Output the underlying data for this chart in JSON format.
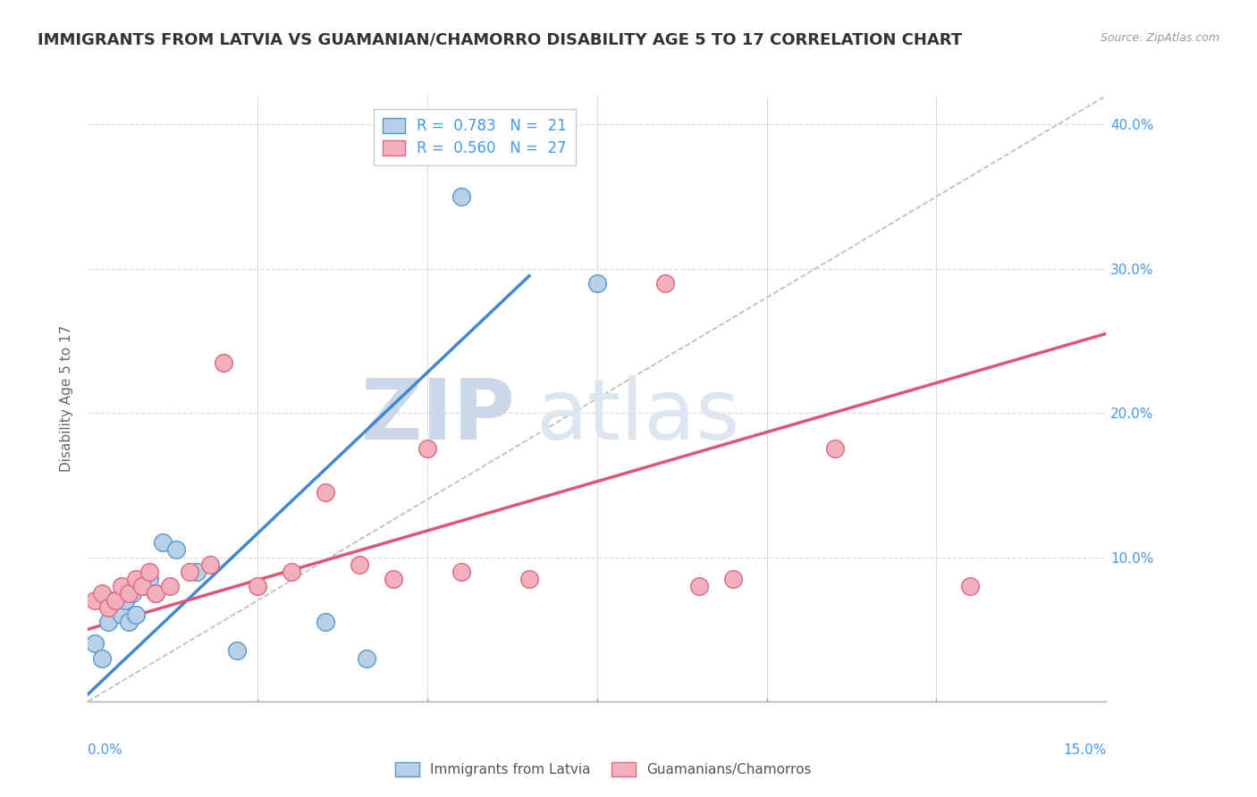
{
  "title": "IMMIGRANTS FROM LATVIA VS GUAMANIAN/CHAMORRO DISABILITY AGE 5 TO 17 CORRELATION CHART",
  "source": "Source: ZipAtlas.com",
  "ylabel": "Disability Age 5 to 17",
  "xmin": 0.0,
  "xmax": 15.0,
  "ymin": 0.0,
  "ymax": 42.0,
  "yticks": [
    10.0,
    20.0,
    30.0,
    40.0
  ],
  "legend1_label": "R =  0.783   N =  21",
  "legend2_label": "R =  0.560   N =  27",
  "color_blue_fill": "#b8d0e8",
  "color_pink_fill": "#f2b0be",
  "color_blue_edge": "#5599cc",
  "color_pink_edge": "#dd6680",
  "color_blue_line": "#4488cc",
  "color_pink_line": "#dd5577",
  "color_diag": "#bbbbbb",
  "series1_name": "Immigrants from Latvia",
  "series2_name": "Guamanians/Chamorros",
  "blue_scatter_x": [
    0.1,
    0.2,
    0.3,
    0.35,
    0.4,
    0.5,
    0.55,
    0.6,
    0.65,
    0.7,
    0.8,
    0.9,
    1.0,
    1.1,
    1.3,
    1.6,
    2.2,
    3.5,
    4.1,
    5.5,
    7.5
  ],
  "blue_scatter_y": [
    4.0,
    3.0,
    5.5,
    7.0,
    6.5,
    6.0,
    7.0,
    5.5,
    7.5,
    6.0,
    8.0,
    8.5,
    7.5,
    11.0,
    10.5,
    9.0,
    3.5,
    5.5,
    3.0,
    35.0,
    29.0
  ],
  "pink_scatter_x": [
    0.1,
    0.2,
    0.3,
    0.4,
    0.5,
    0.6,
    0.7,
    0.8,
    0.9,
    1.0,
    1.2,
    1.5,
    1.8,
    2.0,
    2.5,
    3.0,
    3.5,
    4.0,
    4.5,
    5.0,
    5.5,
    6.5,
    8.5,
    9.0,
    9.5,
    11.0,
    13.0
  ],
  "pink_scatter_y": [
    7.0,
    7.5,
    6.5,
    7.0,
    8.0,
    7.5,
    8.5,
    8.0,
    9.0,
    7.5,
    8.0,
    9.0,
    9.5,
    23.5,
    8.0,
    9.0,
    14.5,
    9.5,
    8.5,
    17.5,
    9.0,
    8.5,
    29.0,
    8.0,
    8.5,
    17.5,
    8.0
  ],
  "blue_line_x": [
    0.0,
    6.5
  ],
  "blue_line_y": [
    0.5,
    29.5
  ],
  "pink_line_x": [
    0.0,
    15.0
  ],
  "pink_line_y": [
    5.0,
    25.5
  ],
  "diag_line_x": [
    0.0,
    15.0
  ],
  "diag_line_y": [
    0.0,
    42.0
  ],
  "background_color": "#ffffff",
  "grid_color": "#dddddd",
  "title_color": "#333333",
  "watermark_zip": "ZIP",
  "watermark_atlas": "atlas",
  "title_fontsize": 13,
  "axis_label_fontsize": 11,
  "tick_fontsize": 11
}
